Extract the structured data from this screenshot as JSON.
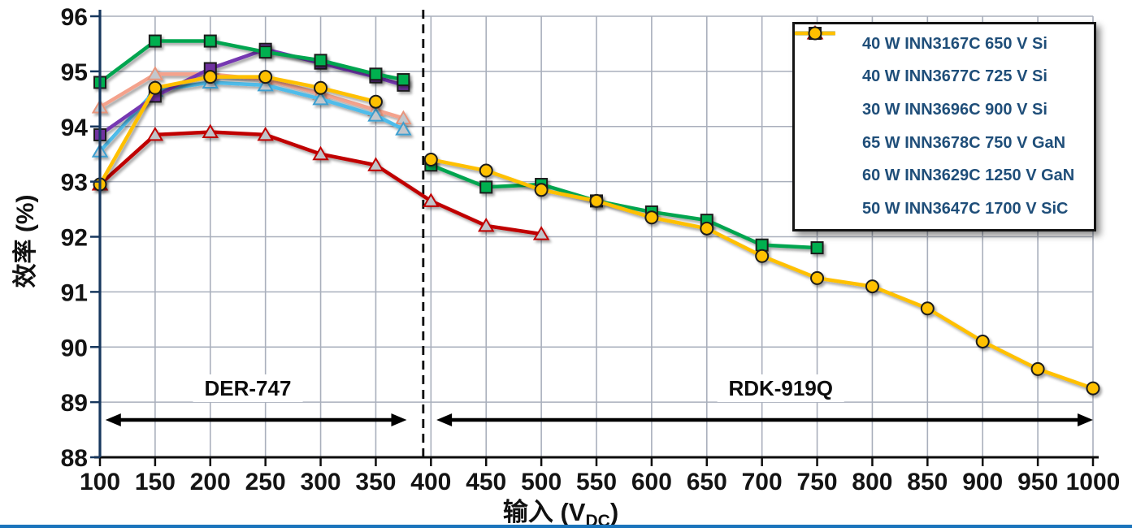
{
  "chart_data": {
    "type": "line",
    "title": "",
    "xlabel_parts": {
      "pre": "输入 (V",
      "sub": "DC",
      "post": ")"
    },
    "ylabel": "效率 (%)",
    "xlim": [
      100,
      1000
    ],
    "ylim": [
      88,
      96
    ],
    "xticks": [
      100,
      150,
      200,
      250,
      300,
      350,
      400,
      450,
      500,
      550,
      600,
      650,
      700,
      750,
      800,
      850,
      900,
      950,
      1000
    ],
    "yticks": [
      88,
      89,
      90,
      91,
      92,
      93,
      94,
      95,
      96
    ],
    "grid": true,
    "legend_position": "top-right",
    "divider_x": 393,
    "regions": [
      {
        "label": "DER-747",
        "arrow_start": 105,
        "arrow_end": 378,
        "label_x": 234
      },
      {
        "label": "RDK-919Q",
        "arrow_start": 405,
        "arrow_end": 1000,
        "label_x": 717
      }
    ],
    "series": [
      {
        "name": "40 W INN3167C 650 V Si",
        "line_color": "#F4A28C",
        "marker": "triangle",
        "marker_fill": "#C3C7CC",
        "marker_stroke": "#E8957B",
        "segments": [
          {
            "x": [
              100,
              150,
              200,
              250,
              300,
              350,
              375
            ],
            "y": [
              94.35,
              94.95,
              94.95,
              94.85,
              94.6,
              94.3,
              94.15
            ]
          }
        ]
      },
      {
        "name": "40 W INN3677C 725 V Si",
        "line_color": "#4FBCEA",
        "marker": "triangle",
        "marker_fill": "#C3C7CC",
        "marker_stroke": "#3E9FD0",
        "segments": [
          {
            "x": [
              100,
              150,
              200,
              250,
              300,
              350,
              375
            ],
            "y": [
              93.55,
              94.65,
              94.8,
              94.75,
              94.5,
              94.2,
              93.95
            ]
          }
        ]
      },
      {
        "name": "30 W INN3696C 900 V Si",
        "line_color": "#C00000",
        "marker": "triangle",
        "marker_fill": "#C0C4C9",
        "marker_stroke": "#C00000",
        "segments": [
          {
            "x": [
              100,
              150,
              200,
              250,
              300,
              350,
              400,
              450,
              500
            ],
            "y": [
              92.95,
              93.85,
              93.9,
              93.85,
              93.5,
              93.3,
              92.65,
              92.2,
              92.05
            ]
          }
        ]
      },
      {
        "name": "65 W INN3678C 750 V GaN",
        "line_color": "#7637B2",
        "marker": "square",
        "marker_fill": "#7030A0",
        "marker_stroke": "#1A1A1A",
        "segments": [
          {
            "x": [
              100,
              150,
              200,
              250,
              300,
              350,
              375
            ],
            "y": [
              93.85,
              94.55,
              95.05,
              95.4,
              95.15,
              94.9,
              94.75
            ]
          }
        ]
      },
      {
        "name": "60 W INN3629C 1250 V GaN",
        "line_color": "#00A550",
        "marker": "square",
        "marker_fill": "#00B050",
        "marker_stroke": "#1A1A1A",
        "segments": [
          {
            "x": [
              100,
              150,
              200,
              250,
              300,
              350,
              375
            ],
            "y": [
              94.8,
              95.55,
              95.55,
              95.35,
              95.2,
              94.95,
              94.85
            ]
          },
          {
            "x": [
              400,
              450,
              500,
              550,
              600,
              650,
              700,
              750
            ],
            "y": [
              93.3,
              92.9,
              92.95,
              92.65,
              92.45,
              92.3,
              91.85,
              91.8
            ]
          }
        ]
      },
      {
        "name": "50 W INN3647C 1700 V SiC",
        "line_color": "#FFC000",
        "marker": "circle",
        "marker_fill": "#FFC000",
        "marker_stroke": "#1A1A1A",
        "segments": [
          {
            "x": [
              100,
              150,
              200,
              250,
              300,
              350
            ],
            "y": [
              92.95,
              94.7,
              94.9,
              94.9,
              94.7,
              94.45
            ]
          },
          {
            "x": [
              400,
              450,
              500,
              550,
              600,
              650,
              700,
              750,
              800,
              850,
              900,
              950,
              1000
            ],
            "y": [
              93.4,
              93.2,
              92.85,
              92.65,
              92.35,
              92.15,
              91.65,
              91.25,
              91.1,
              90.7,
              90.1,
              89.6,
              89.25
            ]
          }
        ]
      }
    ]
  },
  "colors": {
    "grid": "#A9AFBC",
    "y_axis": "#17375E",
    "x_axis": "#0D0D0D",
    "divider": "#000000",
    "arrow": "#000000",
    "legend_text": "#1F4E79",
    "footer_line": "#1B75BC"
  }
}
